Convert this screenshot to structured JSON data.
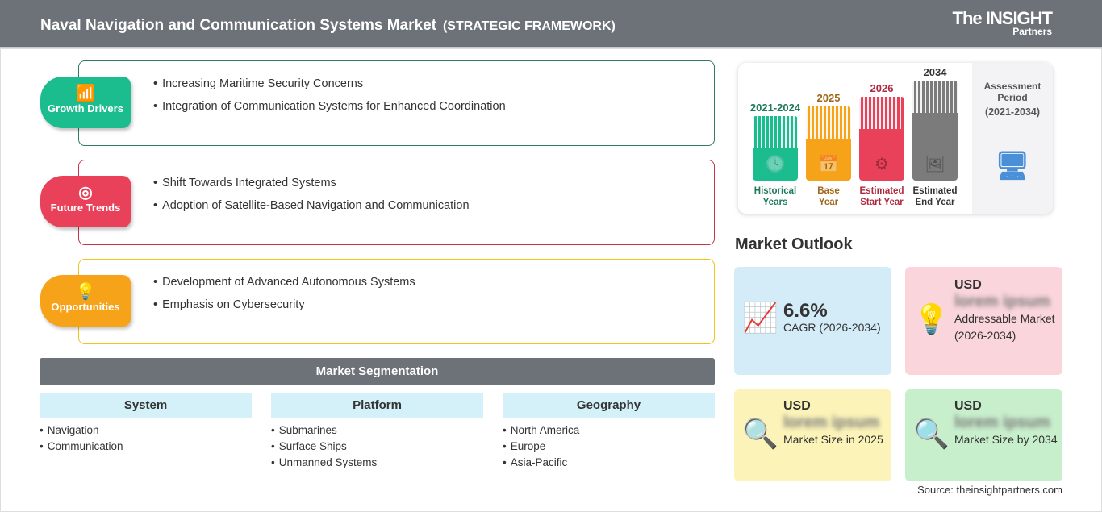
{
  "header": {
    "title": "Naval Navigation and Communication Systems Market",
    "subtitle": "(STRATEGIC FRAMEWORK)",
    "logo_top": "The INSIGHT",
    "logo_bottom": "Partners"
  },
  "framework": [
    {
      "label": "Growth Drivers",
      "icon": "chart-up-icon",
      "color": "#1bbc8e",
      "border": "#2e7d5b",
      "items": [
        "Increasing Maritime Security Concerns",
        "Integration of Communication Systems for Enhanced Coordination"
      ]
    },
    {
      "label": "Future Trends",
      "icon": "target-icon",
      "color": "#e9415a",
      "border": "#c8334a",
      "items": [
        "Shift Towards Integrated Systems",
        "Adoption of Satellite-Based Navigation and Communication"
      ]
    },
    {
      "label": "Opportunities",
      "icon": "lightbulb-hand-icon",
      "color": "#f7a31a",
      "border": "#f0c419",
      "items": [
        "Development of Advanced Autonomous Systems",
        "Emphasis on Cybersecurity"
      ]
    }
  ],
  "segmentation": {
    "title": "Market Segmentation",
    "columns": [
      {
        "header": "System",
        "items": [
          "Navigation",
          "Communication"
        ]
      },
      {
        "header": "Platform",
        "items": [
          "Submarines",
          "Surface Ships",
          "Unmanned Systems"
        ]
      },
      {
        "header": "Geography",
        "items": [
          "North America",
          "Europe",
          "Asia-Pacific"
        ]
      }
    ]
  },
  "timeline": {
    "bars": [
      {
        "year": "2021-2024",
        "label1": "Historical",
        "label2": "Years",
        "color": "#1bbc8e",
        "text": "#1f7a5a"
      },
      {
        "year": "2025",
        "label1": "Base",
        "label2": "Year",
        "color": "#f7a31a",
        "text": "#a0661a"
      },
      {
        "year": "2026",
        "label1": "Estimated",
        "label2": "Start Year",
        "color": "#e9415a",
        "text": "#b0283f"
      },
      {
        "year": "2034",
        "label1": "Estimated",
        "label2": "End Year",
        "color": "#7b7b7b",
        "text": "#333"
      }
    ],
    "side1": "Assessment",
    "side2": "Period",
    "side3": "(2021-2034)"
  },
  "outlook": {
    "title": "Market Outlook",
    "cagr": {
      "value": "6.6%",
      "label": "CAGR (2026-2034)"
    },
    "addressable": {
      "currency": "USD",
      "value": "lorem ipsum",
      "label": "Addressable Market (2026-2034)"
    },
    "size2025": {
      "currency": "USD",
      "value": "lorem ipsum",
      "label": "Market Size in 2025"
    },
    "size2034": {
      "currency": "USD",
      "value": "lorem ipsum",
      "label": "Market Size by 2034"
    }
  },
  "source": "Source: theinsightpartners.com"
}
